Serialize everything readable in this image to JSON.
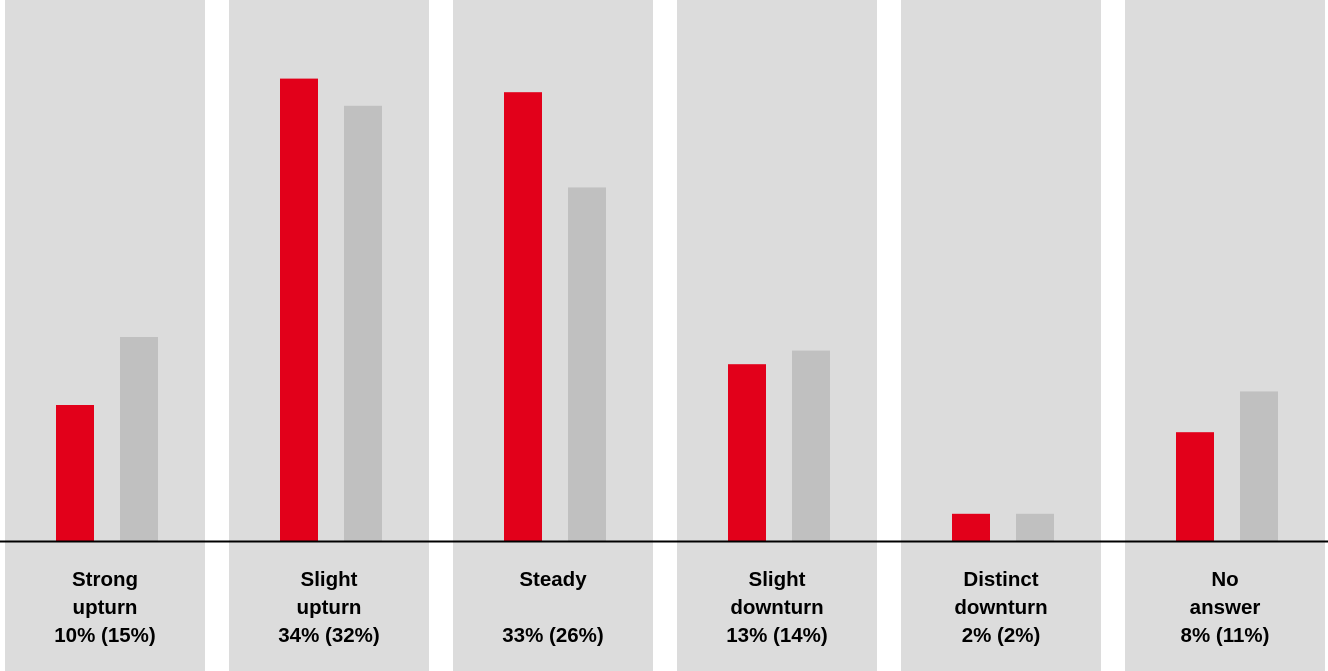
{
  "chart_data": {
    "type": "bar",
    "title": "",
    "xlabel": "",
    "ylabel": "",
    "ylim": [
      0,
      36
    ],
    "grid": false,
    "legend": "none",
    "categories": [
      {
        "name_lines": [
          "Strong",
          "upturn"
        ],
        "value_label": "10% (15%)"
      },
      {
        "name_lines": [
          "Slight",
          "upturn"
        ],
        "value_label": "34% (32%)"
      },
      {
        "name_lines": [
          "Steady",
          ""
        ],
        "value_label": "33% (26%)"
      },
      {
        "name_lines": [
          "Slight",
          "downturn"
        ],
        "value_label": "13% (14%)"
      },
      {
        "name_lines": [
          "Distinct",
          "downturn"
        ],
        "value_label": "2% (2%)"
      },
      {
        "name_lines": [
          "No",
          "answer"
        ],
        "value_label": "8% (11%)"
      }
    ],
    "series": [
      {
        "values": [
          10,
          34,
          33,
          13,
          2,
          8
        ],
        "color": "#e2001a"
      },
      {
        "values": [
          15,
          32,
          26,
          14,
          2,
          11
        ],
        "color": "#c0c0c0"
      }
    ],
    "colors": {
      "panel": "#dcdcdc",
      "baseline": "#000000",
      "text": "#000000"
    }
  }
}
